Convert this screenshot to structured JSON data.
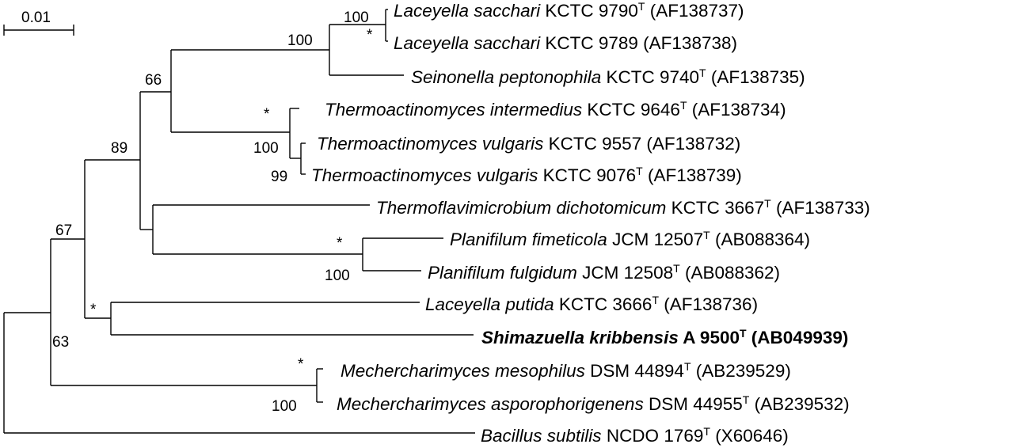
{
  "scale_bar": {
    "label": "0.01"
  },
  "taxa": [
    {
      "italic": "Laceyella sacchari",
      "strain": "KCTC 9790",
      "type": true,
      "acc": "(AF138737)",
      "bold": false
    },
    {
      "italic": "Laceyella sacchari",
      "strain": "KCTC 9789",
      "type": false,
      "acc": "(AF138738)",
      "bold": false
    },
    {
      "italic": "Seinonella peptonophila",
      "strain": "KCTC 9740",
      "type": true,
      "acc": "(AF138735)",
      "bold": false
    },
    {
      "italic": "Thermoactinomyces intermedius",
      "strain": "KCTC 9646",
      "type": true,
      "acc": "(AF138734)",
      "bold": false
    },
    {
      "italic": "Thermoactinomyces vulgaris",
      "strain": "KCTC 9557",
      "type": false,
      "acc": "(AF138732)",
      "bold": false
    },
    {
      "italic": "Thermoactinomyces vulgaris",
      "strain": "KCTC 9076",
      "type": true,
      "acc": "(AF138739)",
      "bold": false
    },
    {
      "italic": "Thermoflavimicrobium dichotomicum",
      "strain": "KCTC 3667",
      "type": true,
      "acc": "(AF138733)",
      "bold": false
    },
    {
      "italic": "Planifilum fimeticola",
      "strain": "JCM 12507",
      "type": true,
      "acc": "(AB088364)",
      "bold": false
    },
    {
      "italic": "Planifilum fulgidum",
      "strain": "JCM 12508",
      "type": true,
      "acc": "(AB088362)",
      "bold": false
    },
    {
      "italic": "Laceyella putida",
      "strain": "KCTC 3666",
      "type": true,
      "acc": "(AF138736)",
      "bold": false
    },
    {
      "italic": "Shimazuella kribbensis",
      "strain": "A 9500",
      "type": true,
      "acc": "(AB049939)",
      "bold": true
    },
    {
      "italic": "Mechercharimyces mesophilus",
      "strain": "DSM 44894",
      "type": true,
      "acc": "(AB239529)",
      "bold": false
    },
    {
      "italic": "Mechercharimyces asporophorigenens",
      "strain": " DSM 44955",
      "type": true,
      "acc": "(AB239532)",
      "bold": false
    },
    {
      "italic": "Bacillus subtilis",
      "strain": "NCDO 1769",
      "type": true,
      "acc": "(X60646)",
      "bold": false
    }
  ],
  "type_mark": "T",
  "bootstrap": [
    {
      "id": "sacchari",
      "value": "100"
    },
    {
      "id": "laceyella-seinonella",
      "value": "100"
    },
    {
      "id": "thermoactinomyces-clade",
      "value": "66"
    },
    {
      "id": "intermedius-node",
      "value": "*"
    },
    {
      "id": "vulgaris-upper",
      "value": "100"
    },
    {
      "id": "vulgaris-lower",
      "value": "99"
    },
    {
      "id": "core-clade",
      "value": "89"
    },
    {
      "id": "planifilum-star",
      "value": "*"
    },
    {
      "id": "planifilum",
      "value": "100"
    },
    {
      "id": "ingroup",
      "value": "67"
    },
    {
      "id": "putida-star",
      "value": "*"
    },
    {
      "id": "putida-shimazuella",
      "value": "63"
    },
    {
      "id": "sacchari-star",
      "value": "*"
    },
    {
      "id": "mechercharimyces-star",
      "value": "*"
    },
    {
      "id": "mechercharimyces",
      "value": "100"
    }
  ]
}
